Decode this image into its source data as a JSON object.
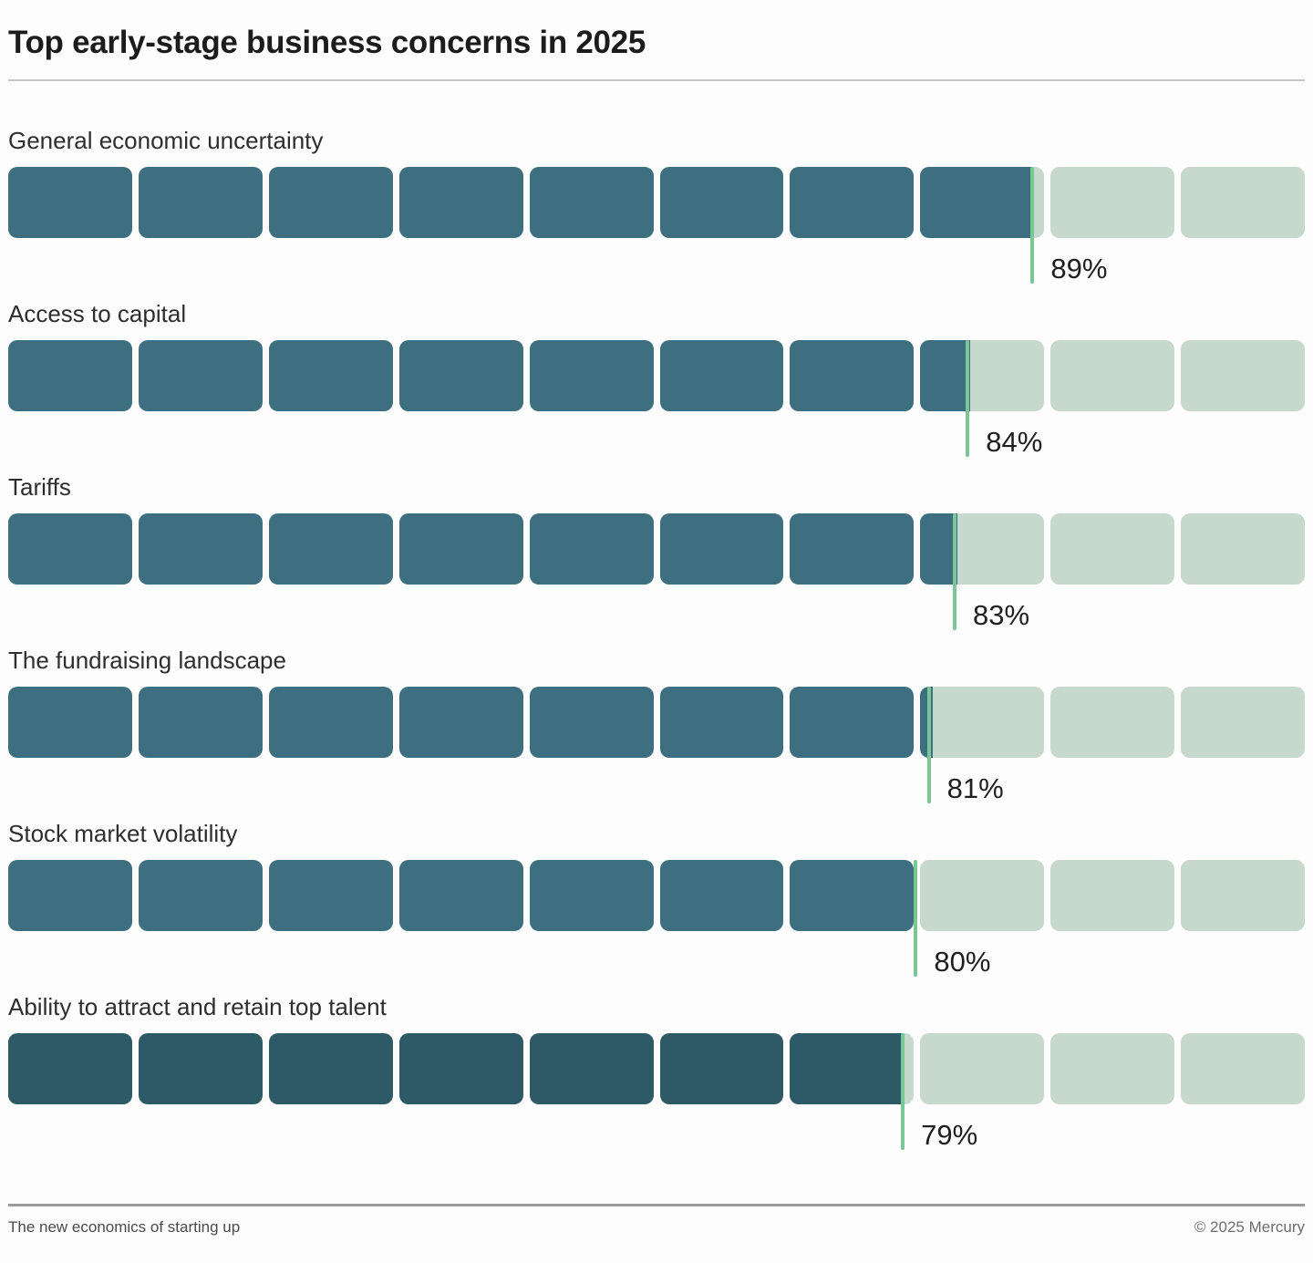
{
  "title": "Top early-stage business concerns in 2025",
  "footer": {
    "left": "The new economics of starting up",
    "right": "© 2025 Mercury"
  },
  "chart_data": {
    "type": "bar",
    "title": "Top early-stage business concerns in 2025",
    "orientation": "horizontal",
    "unit": "%",
    "xlim": [
      0,
      100
    ],
    "segments_per_bar": 10,
    "segment_value": 10,
    "fill_offset": -10,
    "grid": false,
    "legend": null,
    "categories": [
      "General economic uncertainty",
      "Access to capital",
      "Tariffs",
      "The fundraising landscape",
      "Stock market volatility",
      "Ability to attract and retain top talent"
    ],
    "values": [
      89,
      84,
      83,
      81,
      80,
      79
    ],
    "value_labels": [
      "89%",
      "84%",
      "83%",
      "81%",
      "80%",
      "79%"
    ],
    "bars": [
      {
        "label": "General economic uncertainty",
        "value": 89,
        "value_label": "89%",
        "color": "#3d6f80"
      },
      {
        "label": "Access to capital",
        "value": 84,
        "value_label": "84%",
        "color": "#3d6f80"
      },
      {
        "label": "Tariffs",
        "value": 83,
        "value_label": "83%",
        "color": "#3d6f80"
      },
      {
        "label": "The fundraising landscape",
        "value": 81,
        "value_label": "81%",
        "color": "#3d6f80"
      },
      {
        "label": "Stock market volatility",
        "value": 80,
        "value_label": "80%",
        "color": "#3d6f80"
      },
      {
        "label": "Ability to attract and retain top talent",
        "value": 79,
        "value_label": "79%",
        "color": "#2e5967"
      }
    ],
    "colors": {
      "fill": "#3d6f80",
      "fill_last_row": "#2e5967",
      "empty": "#c6d9cc",
      "tick": "#79c697"
    }
  }
}
